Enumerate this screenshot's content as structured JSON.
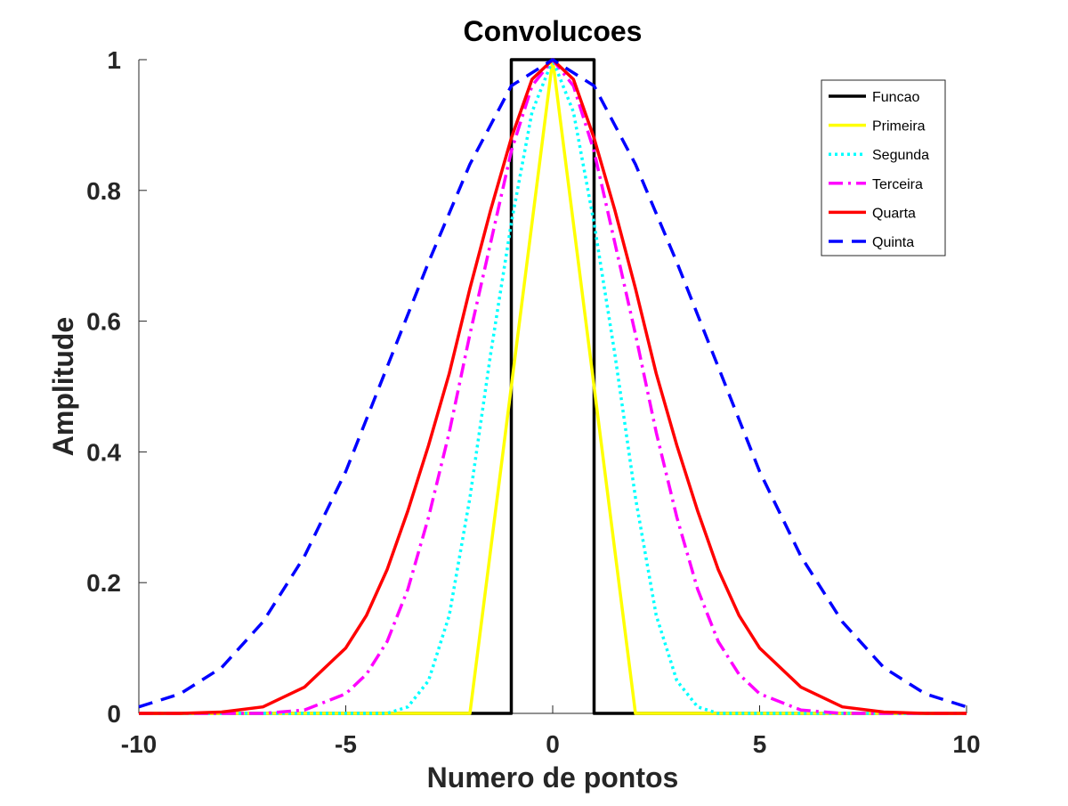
{
  "chart_data": {
    "type": "line",
    "title": "Convolucoes",
    "xlabel": "Numero de pontos",
    "ylabel": "Amplitude",
    "xlim": [
      -10,
      10
    ],
    "ylim": [
      0,
      1
    ],
    "xticks": [
      -10,
      -5,
      0,
      5,
      10
    ],
    "xtick_labels": [
      "-10",
      "-5",
      "0",
      "5",
      "10"
    ],
    "yticks": [
      0,
      0.2,
      0.4,
      0.6,
      0.8,
      1
    ],
    "ytick_labels": [
      "0",
      "0.2",
      "0.4",
      "0.6",
      "0.8",
      "1"
    ],
    "grid": false,
    "legend_position": "top-right",
    "series": [
      {
        "name": "Funcao",
        "color": "#000000",
        "dash": "solid",
        "x": [
          -10,
          -1,
          -1,
          1,
          1,
          10
        ],
        "y": [
          0,
          0,
          1,
          1,
          0,
          0
        ]
      },
      {
        "name": "Primeira",
        "color": "#ffff00",
        "dash": "solid",
        "x": [
          -10,
          -2,
          0,
          2,
          10
        ],
        "y": [
          0,
          0,
          1,
          0,
          0
        ]
      },
      {
        "name": "Segunda",
        "color": "#00ffff",
        "dash": "dotted",
        "x": [
          -10,
          -4,
          -3.5,
          -3,
          -2.5,
          -2,
          -1.5,
          -1,
          -0.5,
          0,
          0.5,
          1,
          1.5,
          2,
          2.5,
          3,
          3.5,
          4,
          10
        ],
        "y": [
          0,
          0,
          0.01,
          0.05,
          0.15,
          0.33,
          0.55,
          0.75,
          0.92,
          1,
          0.92,
          0.75,
          0.55,
          0.33,
          0.15,
          0.05,
          0.01,
          0,
          0
        ]
      },
      {
        "name": "Terceira",
        "color": "#ff00ff",
        "dash": "dashdot",
        "x": [
          -10,
          -7,
          -6,
          -5,
          -4.5,
          -4,
          -3.5,
          -3,
          -2.5,
          -2,
          -1.5,
          -1,
          -0.5,
          0,
          0.5,
          1,
          1.5,
          2,
          2.5,
          3,
          3.5,
          4,
          4.5,
          5,
          6,
          7,
          10
        ],
        "y": [
          0,
          0,
          0.005,
          0.03,
          0.06,
          0.11,
          0.19,
          0.3,
          0.43,
          0.58,
          0.72,
          0.86,
          0.96,
          1,
          0.96,
          0.86,
          0.72,
          0.58,
          0.43,
          0.3,
          0.19,
          0.11,
          0.06,
          0.03,
          0.005,
          0,
          0
        ]
      },
      {
        "name": "Quarta",
        "color": "#ff0000",
        "dash": "solid",
        "x": [
          -10,
          -9,
          -8,
          -7,
          -6,
          -5,
          -4.5,
          -4,
          -3.5,
          -3,
          -2.5,
          -2,
          -1.5,
          -1,
          -0.5,
          0,
          0.5,
          1,
          1.5,
          2,
          2.5,
          3,
          3.5,
          4,
          4.5,
          5,
          6,
          7,
          8,
          9,
          10
        ],
        "y": [
          0,
          0,
          0.002,
          0.01,
          0.04,
          0.1,
          0.15,
          0.22,
          0.31,
          0.41,
          0.52,
          0.65,
          0.77,
          0.88,
          0.97,
          1,
          0.97,
          0.88,
          0.77,
          0.65,
          0.52,
          0.41,
          0.31,
          0.22,
          0.15,
          0.1,
          0.04,
          0.01,
          0.002,
          0,
          0
        ]
      },
      {
        "name": "Quinta",
        "color": "#0000ff",
        "dash": "dashed",
        "x": [
          -10,
          -9,
          -8,
          -7,
          -6,
          -5,
          -4,
          -3,
          -2,
          -1,
          0,
          1,
          2,
          3,
          4,
          5,
          6,
          7,
          8,
          9,
          10
        ],
        "y": [
          0.01,
          0.03,
          0.07,
          0.14,
          0.24,
          0.37,
          0.53,
          0.69,
          0.84,
          0.96,
          1,
          0.96,
          0.84,
          0.69,
          0.53,
          0.37,
          0.24,
          0.14,
          0.07,
          0.03,
          0.01
        ]
      }
    ]
  }
}
